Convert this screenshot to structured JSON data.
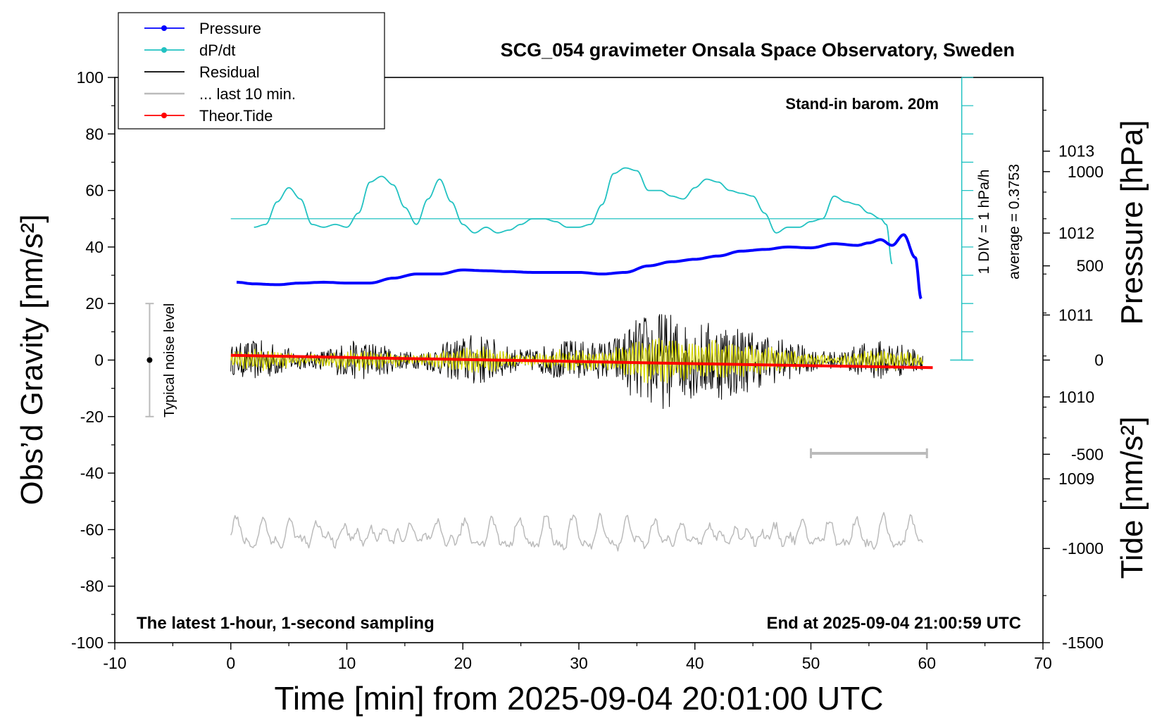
{
  "chart_data": {
    "type": "line",
    "title": "SCG_054 gravimeter Onsala Space Observatory, Sweden",
    "xlabel": "Time [min] from 2025-09-04 20:01:00 UTC",
    "ylabel_left": "Obs’d Gravity [nm/s²]",
    "ylabel_right_top": "Pressure [hPa]",
    "ylabel_right_bottom": "Tide [nm/s²]",
    "xlim": [
      -10,
      70
    ],
    "ylim": [
      -100,
      100
    ],
    "pressure_lim": [
      1007,
      1013.9
    ],
    "tide_lim": [
      -1500,
      1500
    ],
    "x_ticks": [
      "-10",
      "0",
      "10",
      "20",
      "30",
      "40",
      "50",
      "60",
      "70"
    ],
    "y_ticks": [
      "100",
      "80",
      "60",
      "40",
      "20",
      "0",
      "-20",
      "-40",
      "-60",
      "-80",
      "-100"
    ],
    "pressure_ticks": [
      "1013",
      "1012",
      "1011",
      "1010",
      "1009"
    ],
    "tide_ticks": [
      "1000",
      "500",
      "0",
      "-500",
      "-1000",
      "-1500"
    ],
    "grid": false,
    "legend_position": "top-left",
    "legend": [
      {
        "name": "Pressure",
        "color": "#0000ff",
        "marker": true
      },
      {
        "name": "dP/dt",
        "color": "#22c2c2",
        "marker": true
      },
      {
        "name": "Residual",
        "color": "#000000",
        "marker": false
      },
      {
        "name": "... last 10 min.",
        "color": "#bbbbbb",
        "marker": false
      },
      {
        "name": "Theor.Tide",
        "color": "#ff0000",
        "marker": true
      }
    ],
    "annotations": {
      "barometer": "Stand-in barom. 20m",
      "div_label": "1 DIV = 1 hPa/h",
      "average_label": "average = 0.3753",
      "noise_label": "Typical noise level",
      "bottom_left": "The latest 1-hour, 1-second sampling",
      "bottom_right": "End at 2025-09-04 21:00:59 UTC"
    },
    "noise_bar": {
      "x": -7,
      "center": 0,
      "half_range": 20
    },
    "dpdt_baseline": 50,
    "dpdt_div_axis": {
      "x": 63,
      "from": 0,
      "to": 100,
      "div": 10
    },
    "ten_min_marker": {
      "from": 50,
      "to": 60,
      "y": -33
    },
    "series": [
      {
        "name": "Pressure",
        "unit": "hPa",
        "x": [
          0.5,
          2,
          4,
          6,
          8,
          10,
          12,
          14,
          16,
          18,
          20,
          22,
          24,
          26,
          28,
          30,
          32,
          34,
          36,
          38,
          40,
          42,
          44,
          46,
          48,
          50,
          52,
          54,
          55,
          56,
          57,
          58,
          59,
          59.5
        ],
        "values": [
          1011.4,
          1011.38,
          1011.37,
          1011.39,
          1011.4,
          1011.39,
          1011.39,
          1011.45,
          1011.5,
          1011.5,
          1011.55,
          1011.54,
          1011.53,
          1011.52,
          1011.52,
          1011.52,
          1011.5,
          1011.52,
          1011.6,
          1011.65,
          1011.68,
          1011.72,
          1011.78,
          1011.8,
          1011.83,
          1011.82,
          1011.87,
          1011.85,
          1011.88,
          1011.92,
          1011.85,
          1011.98,
          1011.7,
          1011.2
        ]
      },
      {
        "name": "dP/dt",
        "unit": "nm/s² plot units",
        "x": [
          2,
          3,
          4,
          5,
          6,
          7,
          8,
          9,
          10,
          11,
          12,
          13,
          14,
          15,
          16,
          17,
          18,
          19,
          20,
          21,
          22,
          23,
          24,
          25,
          26,
          27,
          28,
          29,
          30,
          31,
          32,
          33,
          34,
          35,
          36,
          37,
          38,
          39,
          40,
          41,
          42,
          43,
          44,
          45,
          46,
          47,
          48,
          49,
          50,
          51,
          52,
          53,
          54,
          55,
          56,
          56.5,
          57
        ],
        "values": [
          47,
          48,
          56,
          61,
          57,
          48,
          47,
          48,
          47,
          52,
          63,
          65,
          62,
          54,
          48,
          57,
          64,
          56,
          48,
          45,
          47,
          45,
          46,
          48,
          50,
          50,
          49,
          47,
          47,
          48,
          55,
          66,
          68,
          67,
          60,
          60,
          58,
          57,
          61,
          64,
          63,
          60,
          59,
          58,
          52,
          45,
          47,
          47,
          49,
          50,
          58,
          56,
          55,
          52,
          50,
          48,
          34
        ]
      },
      {
        "name": "Theor.Tide",
        "unit": "nm/s²",
        "x": [
          0,
          10,
          20,
          30,
          40,
          50,
          60.5
        ],
        "values": [
          25,
          14,
          3,
          -8,
          -19,
          -30,
          -40
        ]
      }
    ]
  }
}
